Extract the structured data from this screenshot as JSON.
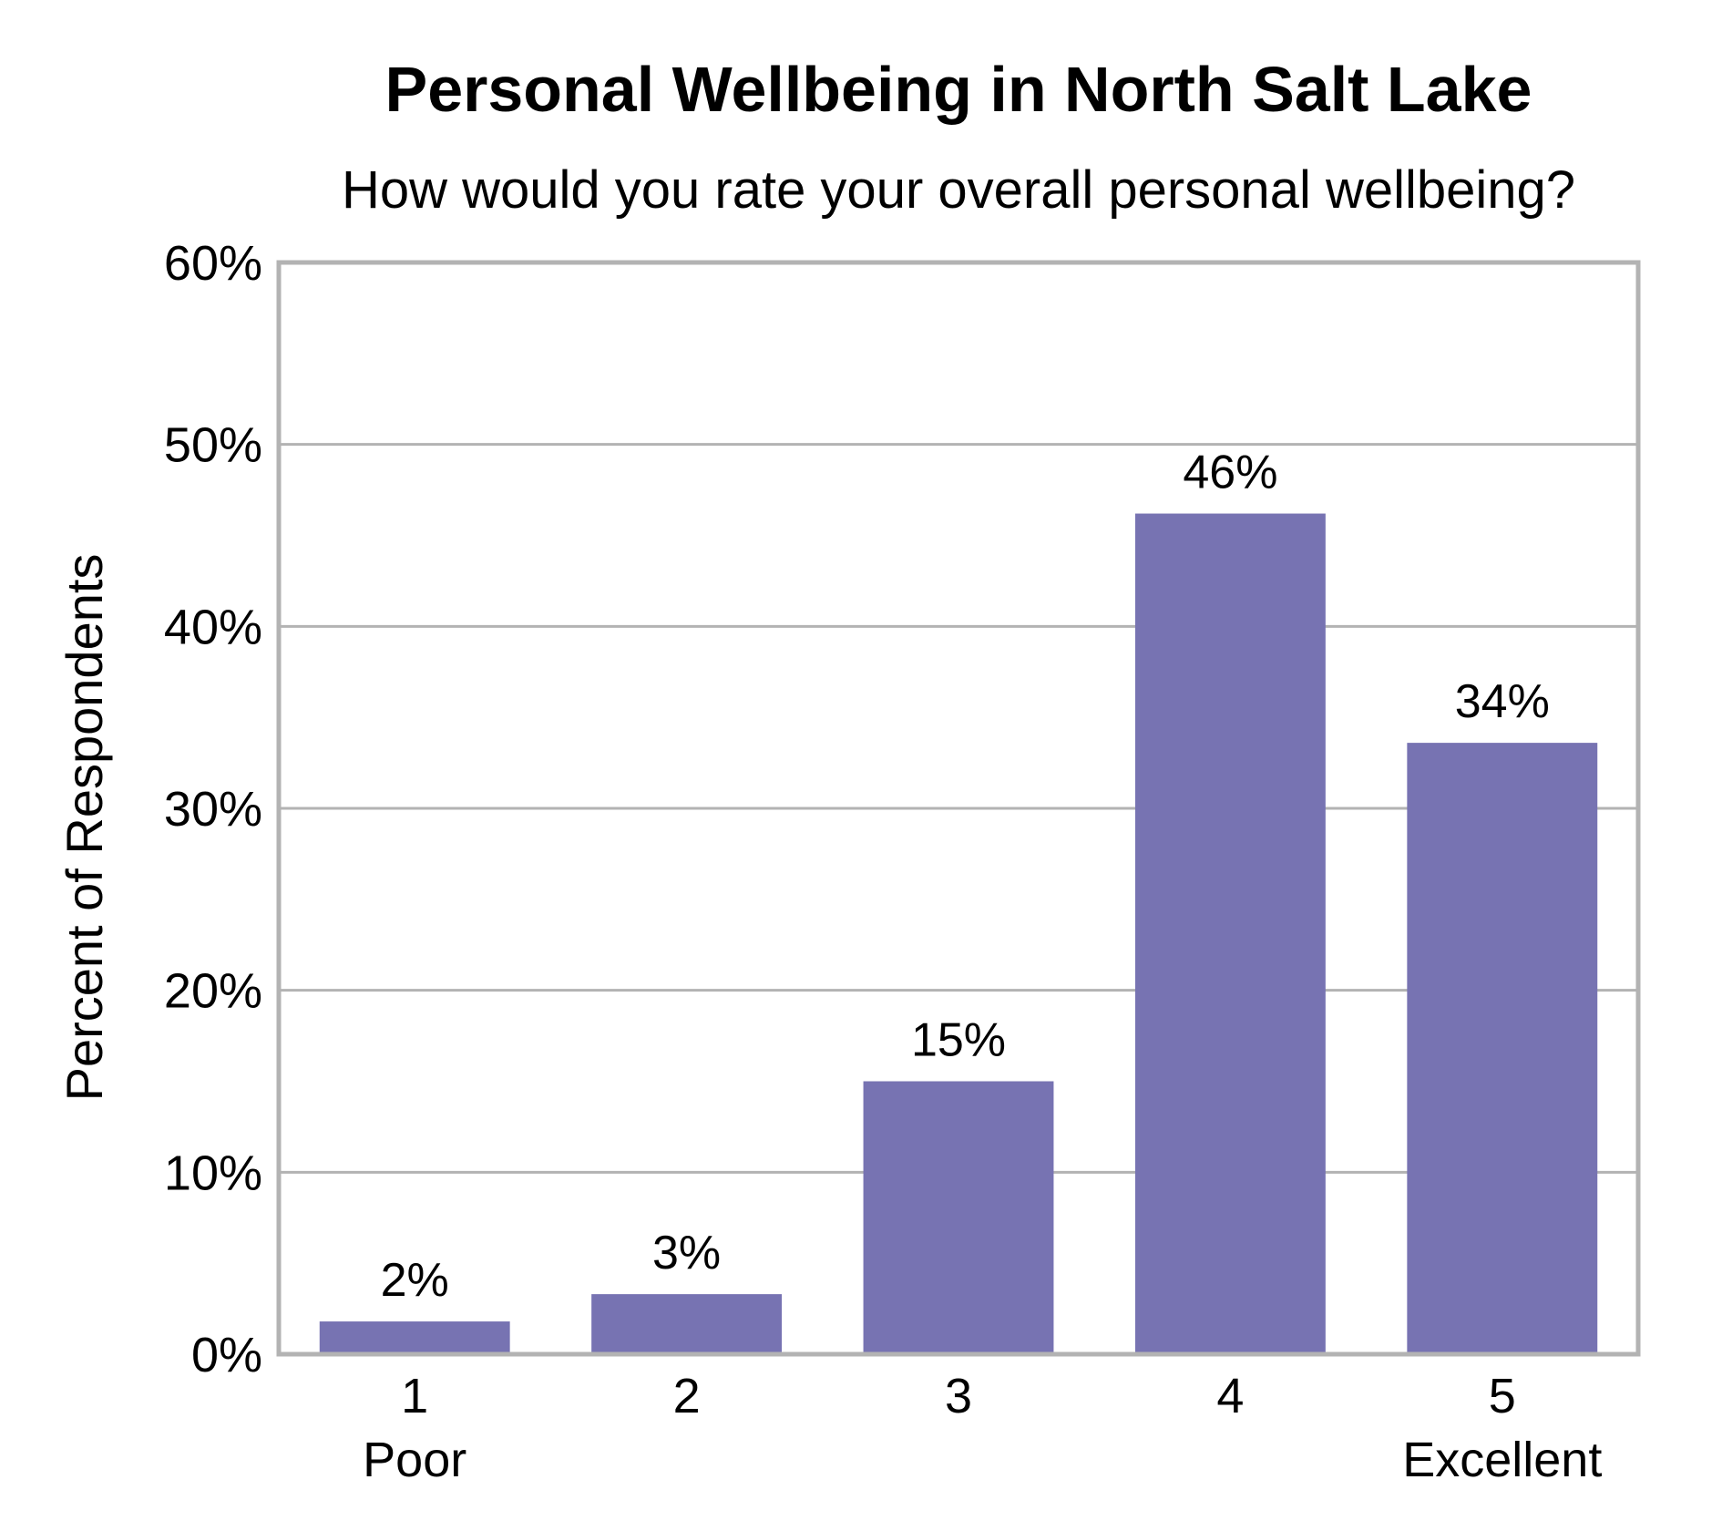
{
  "chart_data": {
    "type": "bar",
    "title": "Personal Wellbeing in North Salt Lake",
    "subtitle": "How would you rate your overall personal wellbeing?",
    "xlabel": "",
    "ylabel": "Percent of Respondents",
    "categories": [
      "1",
      "2",
      "3",
      "4",
      "5"
    ],
    "category_sublabels": [
      "Poor",
      "",
      "",
      "",
      "Excellent"
    ],
    "values": [
      1.8,
      3.3,
      15.0,
      46.2,
      33.6
    ],
    "data_labels": [
      "2%",
      "3%",
      "15%",
      "46%",
      "34%"
    ],
    "ylim": [
      0,
      60
    ],
    "yticks": [
      0,
      10,
      20,
      30,
      40,
      50,
      60
    ],
    "ytick_labels": [
      "0%",
      "10%",
      "20%",
      "30%",
      "40%",
      "50%",
      "60%"
    ],
    "grid": true,
    "bar_color": "#7773b2",
    "grid_color": "#b3b3b3"
  }
}
